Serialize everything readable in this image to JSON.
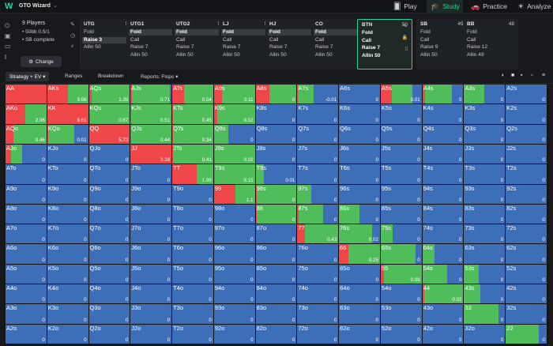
{
  "app": {
    "name": "GTO Wizard"
  },
  "nav": {
    "play": "Play",
    "study": "Study",
    "practice": "Practice",
    "analyze": "Analyze"
  },
  "left": {
    "players": "9 Players",
    "blinds": "• 50bb 0.5/1",
    "sb": "• SB complete",
    "change": "Change"
  },
  "seats": [
    {
      "name": "UTG",
      "stack": "50",
      "actions": [
        {
          "t": "Fold"
        },
        {
          "t": "Raise 3",
          "sel": true
        },
        {
          "t": "Allin 50"
        }
      ]
    },
    {
      "name": "UTG1",
      "stack": "50",
      "actions": [
        {
          "t": "Fold",
          "sel": true
        },
        {
          "t": "Call"
        },
        {
          "t": "Raise 7"
        },
        {
          "t": "Allin 50"
        }
      ]
    },
    {
      "name": "UTG2",
      "stack": "50",
      "actions": [
        {
          "t": "Fold",
          "sel": true
        },
        {
          "t": "Call"
        },
        {
          "t": "Raise 7"
        },
        {
          "t": "Allin 50"
        }
      ]
    },
    {
      "name": "LJ",
      "stack": "50",
      "actions": [
        {
          "t": "Fold",
          "sel": true
        },
        {
          "t": "Call"
        },
        {
          "t": "Raise 7"
        },
        {
          "t": "Allin 50"
        }
      ]
    },
    {
      "name": "HJ",
      "stack": "50",
      "actions": [
        {
          "t": "Fold",
          "sel": true
        },
        {
          "t": "Call"
        },
        {
          "t": "Raise 7"
        },
        {
          "t": "Allin 50"
        }
      ]
    },
    {
      "name": "CO",
      "stack": "50",
      "actions": [
        {
          "t": "Fold",
          "sel": true
        },
        {
          "t": "Call"
        },
        {
          "t": "Raise 7"
        },
        {
          "t": "Allin 50"
        }
      ]
    },
    {
      "name": "BTN",
      "stack": "50",
      "active": true,
      "actions": [
        {
          "t": "Fold"
        },
        {
          "t": "Call"
        },
        {
          "t": "Raise 7"
        },
        {
          "t": "Allin 50"
        }
      ]
    },
    {
      "name": "SB",
      "stack": "49.5",
      "actions": [
        {
          "t": "Fold"
        },
        {
          "t": "Call"
        },
        {
          "t": "Raise 9"
        },
        {
          "t": "Allin 50"
        }
      ]
    },
    {
      "name": "BB",
      "stack": "48",
      "actions": [
        {
          "t": "Fold"
        },
        {
          "t": "Call"
        },
        {
          "t": "Raise 12"
        },
        {
          "t": "Allin 49"
        }
      ]
    }
  ],
  "subbar": {
    "strategy": "Strategy + EV",
    "ranges": "Ranges",
    "breakdown": "Breakdown",
    "reports": "Reports: Flops"
  },
  "colors": {
    "allin": "#e0363b",
    "raise": "#ef4649",
    "call": "#4fbe5a",
    "fold": "#3d6fb9"
  },
  "grid": [
    [
      {
        "h": "AA",
        "r": 1,
        "c": 0,
        "e": ""
      },
      {
        "h": "AKs",
        "r": 0.5,
        "c": 0.5,
        "e": "3.06"
      },
      {
        "h": "AQs",
        "r": 0.06,
        "c": 0.94,
        "e": "1.35"
      },
      {
        "h": "AJs",
        "r": 0.03,
        "c": 0.93,
        "e": "0.71"
      },
      {
        "h": "ATs",
        "r": 0.28,
        "c": 0.72,
        "e": "0.54"
      },
      {
        "h": "A9s",
        "r": 0.2,
        "c": 0.8,
        "e": "0.11"
      },
      {
        "h": "A8s",
        "r": 0.33,
        "c": 0.67,
        "e": "0"
      },
      {
        "h": "A7s",
        "r": 0.02,
        "c": 0.37,
        "e": "-0.01"
      },
      {
        "h": "A6s",
        "r": 0,
        "c": 0,
        "e": "0"
      },
      {
        "h": "A5s",
        "r": 0.27,
        "c": 0.5,
        "e": "0.01"
      },
      {
        "h": "A4s",
        "r": 0.06,
        "c": 0.66,
        "e": "0"
      },
      {
        "h": "A3s",
        "r": 0,
        "c": 0.5,
        "e": "0"
      },
      {
        "h": "A2s",
        "r": 0,
        "c": 0,
        "e": "0"
      }
    ],
    [
      {
        "h": "AKo",
        "r": 0.48,
        "c": 0.52,
        "e": "2.06"
      },
      {
        "h": "KK",
        "r": 1,
        "c": 0,
        "e": "9.61"
      },
      {
        "h": "KQs",
        "r": 0.02,
        "c": 0.98,
        "e": "0.67"
      },
      {
        "h": "KJs",
        "r": 0.02,
        "c": 0.98,
        "e": "0.51"
      },
      {
        "h": "KTs",
        "r": 0.02,
        "c": 0.98,
        "e": "0.45"
      },
      {
        "h": "K9s",
        "r": 0.08,
        "c": 0.92,
        "e": "0.02"
      },
      {
        "h": "K8s",
        "r": 0,
        "c": 0,
        "e": "0"
      },
      {
        "h": "K7s",
        "r": 0,
        "c": 0,
        "e": "0"
      },
      {
        "h": "K6s",
        "r": 0,
        "c": 0,
        "e": "0"
      },
      {
        "h": "K5s",
        "r": 0,
        "c": 0,
        "e": "0"
      },
      {
        "h": "K4s",
        "r": 0,
        "c": 0,
        "e": "0"
      },
      {
        "h": "K3s",
        "r": 0,
        "c": 0,
        "e": "0"
      },
      {
        "h": "K2s",
        "r": 0,
        "c": 0,
        "e": "0"
      }
    ],
    [
      {
        "h": "AQo",
        "r": 0.2,
        "c": 0.8,
        "e": "0.46"
      },
      {
        "h": "KQo",
        "r": 0.02,
        "c": 0.64,
        "e": "0.01"
      },
      {
        "h": "QQ",
        "r": 1,
        "c": 0,
        "e": "5.72"
      },
      {
        "h": "QJs",
        "r": 0.02,
        "c": 0.98,
        "e": "0.44"
      },
      {
        "h": "QTs",
        "r": 0.02,
        "c": 0.98,
        "e": "0.34"
      },
      {
        "h": "Q9s",
        "r": 0,
        "c": 0.35,
        "e": "0"
      },
      {
        "h": "Q8s",
        "r": 0,
        "c": 0,
        "e": "0"
      },
      {
        "h": "Q7s",
        "r": 0,
        "c": 0,
        "e": "0"
      },
      {
        "h": "Q6s",
        "r": 0,
        "c": 0,
        "e": "0"
      },
      {
        "h": "Q5s",
        "r": 0,
        "c": 0,
        "e": "0"
      },
      {
        "h": "Q4s",
        "r": 0,
        "c": 0,
        "e": "0"
      },
      {
        "h": "Q3s",
        "r": 0,
        "c": 0,
        "e": "0"
      },
      {
        "h": "Q2s",
        "r": 0,
        "c": 0,
        "e": "0"
      }
    ],
    [
      {
        "h": "AJo",
        "r": 0.13,
        "c": 0.27,
        "e": "0"
      },
      {
        "h": "KJo",
        "r": 0,
        "c": 0,
        "e": "0"
      },
      {
        "h": "QJo",
        "r": 0,
        "c": 0,
        "e": "0"
      },
      {
        "h": "JJ",
        "r": 1,
        "c": 0,
        "e": "3.28"
      },
      {
        "h": "JTs",
        "r": 0.02,
        "c": 0.98,
        "e": "0.41"
      },
      {
        "h": "J9s",
        "r": 0.02,
        "c": 0.98,
        "e": "0.02"
      },
      {
        "h": "J8s",
        "r": 0,
        "c": 0,
        "e": "0"
      },
      {
        "h": "J7s",
        "r": 0,
        "c": 0,
        "e": "0"
      },
      {
        "h": "J6s",
        "r": 0,
        "c": 0,
        "e": "0"
      },
      {
        "h": "J5s",
        "r": 0,
        "c": 0,
        "e": "0"
      },
      {
        "h": "J4s",
        "r": 0,
        "c": 0,
        "e": "0"
      },
      {
        "h": "J3s",
        "r": 0,
        "c": 0,
        "e": "0"
      },
      {
        "h": "J2s",
        "r": 0,
        "c": 0,
        "e": "0"
      }
    ],
    [
      {
        "h": "ATo",
        "r": 0,
        "c": 0,
        "e": "0"
      },
      {
        "h": "KTo",
        "r": 0,
        "c": 0,
        "e": "0"
      },
      {
        "h": "QTo",
        "r": 0,
        "c": 0,
        "e": "0"
      },
      {
        "h": "JTo",
        "r": 0,
        "c": 0,
        "e": "0"
      },
      {
        "h": "TT",
        "r": 0.6,
        "c": 0.4,
        "e": "1.99"
      },
      {
        "h": "T9s",
        "r": 0.03,
        "c": 0.97,
        "e": "0.15"
      },
      {
        "h": "T8s",
        "r": 0,
        "c": 0.2,
        "e": "0.01"
      },
      {
        "h": "T7s",
        "r": 0,
        "c": 0,
        "e": "0"
      },
      {
        "h": "T6s",
        "r": 0,
        "c": 0,
        "e": "0"
      },
      {
        "h": "T5s",
        "r": 0,
        "c": 0,
        "e": "0"
      },
      {
        "h": "T4s",
        "r": 0,
        "c": 0,
        "e": "0"
      },
      {
        "h": "T3s",
        "r": 0,
        "c": 0,
        "e": "0"
      },
      {
        "h": "T2s",
        "r": 0,
        "c": 0,
        "e": "0"
      }
    ],
    [
      {
        "h": "A9o",
        "r": 0,
        "c": 0,
        "e": "0"
      },
      {
        "h": "K9o",
        "r": 0,
        "c": 0,
        "e": "0"
      },
      {
        "h": "Q9o",
        "r": 0,
        "c": 0,
        "e": "0"
      },
      {
        "h": "J9o",
        "r": 0,
        "c": 0,
        "e": "0"
      },
      {
        "h": "T9o",
        "r": 0,
        "c": 0,
        "e": "0"
      },
      {
        "h": "99",
        "r": 0.52,
        "c": 0.48,
        "e": "1.1"
      },
      {
        "h": "98s",
        "r": 0.03,
        "c": 0.97,
        "e": "0"
      },
      {
        "h": "97s",
        "r": 0,
        "c": 0.35,
        "e": "0"
      },
      {
        "h": "96s",
        "r": 0,
        "c": 0,
        "e": "0"
      },
      {
        "h": "95s",
        "r": 0,
        "c": 0,
        "e": "0"
      },
      {
        "h": "94s",
        "r": 0,
        "c": 0,
        "e": "0"
      },
      {
        "h": "93s",
        "r": 0,
        "c": 0,
        "e": "0"
      },
      {
        "h": "92s",
        "r": 0,
        "c": 0,
        "e": "0"
      }
    ],
    [
      {
        "h": "A8o",
        "r": 0,
        "c": 0,
        "e": "0"
      },
      {
        "h": "K8o",
        "r": 0,
        "c": 0,
        "e": "0"
      },
      {
        "h": "Q8o",
        "r": 0,
        "c": 0,
        "e": "0"
      },
      {
        "h": "J8o",
        "r": 0,
        "c": 0,
        "e": "0"
      },
      {
        "h": "T8o",
        "r": 0,
        "c": 0,
        "e": "0"
      },
      {
        "h": "98o",
        "r": 0,
        "c": 0,
        "e": "0"
      },
      {
        "h": "88",
        "r": 0.02,
        "c": 0.98,
        "e": "0"
      },
      {
        "h": "87s",
        "r": 0.04,
        "c": 0.6,
        "e": "0"
      },
      {
        "h": "86s",
        "r": 0,
        "c": 0.5,
        "e": "0"
      },
      {
        "h": "85s",
        "r": 0,
        "c": 0,
        "e": "0"
      },
      {
        "h": "84s",
        "r": 0,
        "c": 0,
        "e": "0"
      },
      {
        "h": "83s",
        "r": 0,
        "c": 0,
        "e": "0"
      },
      {
        "h": "82s",
        "r": 0,
        "c": 0,
        "e": "0"
      }
    ],
    [
      {
        "h": "A7o",
        "r": 0,
        "c": 0,
        "e": "0"
      },
      {
        "h": "K7o",
        "r": 0,
        "c": 0,
        "e": "0"
      },
      {
        "h": "Q7o",
        "r": 0,
        "c": 0,
        "e": "0"
      },
      {
        "h": "J7o",
        "r": 0,
        "c": 0,
        "e": "0"
      },
      {
        "h": "T7o",
        "r": 0,
        "c": 0,
        "e": "0"
      },
      {
        "h": "97o",
        "r": 0,
        "c": 0,
        "e": "0"
      },
      {
        "h": "87o",
        "r": 0,
        "c": 0,
        "e": "0"
      },
      {
        "h": "77",
        "r": 0.18,
        "c": 0.82,
        "e": "0.43"
      },
      {
        "h": "76s",
        "r": 0,
        "c": 0.8,
        "e": "0.02"
      },
      {
        "h": "75s",
        "r": 0,
        "c": 0.3,
        "e": "0"
      },
      {
        "h": "74s",
        "r": 0,
        "c": 0,
        "e": "0"
      },
      {
        "h": "73s",
        "r": 0,
        "c": 0,
        "e": "0"
      },
      {
        "h": "72s",
        "r": 0,
        "c": 0,
        "e": "0"
      }
    ],
    [
      {
        "h": "A6o",
        "r": 0,
        "c": 0,
        "e": "0"
      },
      {
        "h": "K6o",
        "r": 0,
        "c": 0,
        "e": "0"
      },
      {
        "h": "Q6o",
        "r": 0,
        "c": 0,
        "e": "0"
      },
      {
        "h": "J6o",
        "r": 0,
        "c": 0,
        "e": "0"
      },
      {
        "h": "T6o",
        "r": 0,
        "c": 0,
        "e": "0"
      },
      {
        "h": "96o",
        "r": 0,
        "c": 0,
        "e": "0"
      },
      {
        "h": "86o",
        "r": 0,
        "c": 0,
        "e": "0"
      },
      {
        "h": "76o",
        "r": 0,
        "c": 0,
        "e": "0"
      },
      {
        "h": "66",
        "r": 0.22,
        "c": 0.78,
        "e": "0.25"
      },
      {
        "h": "65s",
        "r": 0,
        "c": 0.85,
        "e": "0"
      },
      {
        "h": "64s",
        "r": 0,
        "c": 0.3,
        "e": "0"
      },
      {
        "h": "63s",
        "r": 0,
        "c": 0,
        "e": "0"
      },
      {
        "h": "62s",
        "r": 0,
        "c": 0,
        "e": "0"
      }
    ],
    [
      {
        "h": "A5o",
        "r": 0,
        "c": 0,
        "e": "0"
      },
      {
        "h": "K5o",
        "r": 0,
        "c": 0,
        "e": "0"
      },
      {
        "h": "Q5o",
        "r": 0,
        "c": 0,
        "e": "0"
      },
      {
        "h": "J5o",
        "r": 0,
        "c": 0,
        "e": "0"
      },
      {
        "h": "T5o",
        "r": 0,
        "c": 0,
        "e": "0"
      },
      {
        "h": "95o",
        "r": 0,
        "c": 0,
        "e": "0"
      },
      {
        "h": "85o",
        "r": 0,
        "c": 0,
        "e": "0"
      },
      {
        "h": "75o",
        "r": 0,
        "c": 0,
        "e": "0"
      },
      {
        "h": "65o",
        "r": 0,
        "c": 0,
        "e": "0"
      },
      {
        "h": "55",
        "r": 0.08,
        "c": 0.92,
        "e": "0.08"
      },
      {
        "h": "54s",
        "r": 0,
        "c": 0.6,
        "e": "0"
      },
      {
        "h": "53s",
        "r": 0,
        "c": 0.35,
        "e": "0"
      },
      {
        "h": "52s",
        "r": 0,
        "c": 0,
        "e": "0"
      }
    ],
    [
      {
        "h": "A4o",
        "r": 0,
        "c": 0,
        "e": "0"
      },
      {
        "h": "K4o",
        "r": 0,
        "c": 0,
        "e": "0"
      },
      {
        "h": "Q4o",
        "r": 0,
        "c": 0,
        "e": "0"
      },
      {
        "h": "J4o",
        "r": 0,
        "c": 0,
        "e": "0"
      },
      {
        "h": "T4o",
        "r": 0,
        "c": 0,
        "e": "0"
      },
      {
        "h": "94o",
        "r": 0,
        "c": 0,
        "e": "0"
      },
      {
        "h": "84o",
        "r": 0,
        "c": 0,
        "e": "0"
      },
      {
        "h": "74o",
        "r": 0,
        "c": 0,
        "e": "0"
      },
      {
        "h": "64o",
        "r": 0,
        "c": 0,
        "e": "0"
      },
      {
        "h": "54o",
        "r": 0,
        "c": 0,
        "e": "0"
      },
      {
        "h": "44",
        "r": 0.04,
        "c": 0.96,
        "e": "0.02"
      },
      {
        "h": "43s",
        "r": 0,
        "c": 0.4,
        "e": "0"
      },
      {
        "h": "42s",
        "r": 0,
        "c": 0,
        "e": "0"
      }
    ],
    [
      {
        "h": "A3o",
        "r": 0,
        "c": 0,
        "e": "0"
      },
      {
        "h": "K3o",
        "r": 0,
        "c": 0,
        "e": "0"
      },
      {
        "h": "Q3o",
        "r": 0,
        "c": 0,
        "e": "0"
      },
      {
        "h": "J3o",
        "r": 0,
        "c": 0,
        "e": "0"
      },
      {
        "h": "T3o",
        "r": 0,
        "c": 0,
        "e": "0"
      },
      {
        "h": "93o",
        "r": 0,
        "c": 0,
        "e": "0"
      },
      {
        "h": "83o",
        "r": 0,
        "c": 0,
        "e": "0"
      },
      {
        "h": "73o",
        "r": 0,
        "c": 0,
        "e": "0"
      },
      {
        "h": "63o",
        "r": 0,
        "c": 0,
        "e": "0"
      },
      {
        "h": "53o",
        "r": 0,
        "c": 0,
        "e": "0"
      },
      {
        "h": "43o",
        "r": 0,
        "c": 0,
        "e": "0"
      },
      {
        "h": "33",
        "r": 0,
        "c": 0.84,
        "e": "0"
      },
      {
        "h": "32s",
        "r": 0,
        "c": 0,
        "e": "0"
      }
    ],
    [
      {
        "h": "A2o",
        "r": 0,
        "c": 0,
        "e": "0"
      },
      {
        "h": "K2o",
        "r": 0,
        "c": 0,
        "e": "0"
      },
      {
        "h": "Q2o",
        "r": 0,
        "c": 0,
        "e": "0"
      },
      {
        "h": "J2o",
        "r": 0,
        "c": 0,
        "e": "0"
      },
      {
        "h": "T2o",
        "r": 0,
        "c": 0,
        "e": "0"
      },
      {
        "h": "92o",
        "r": 0,
        "c": 0,
        "e": "0"
      },
      {
        "h": "82o",
        "r": 0,
        "c": 0,
        "e": "0"
      },
      {
        "h": "72o",
        "r": 0,
        "c": 0,
        "e": "0"
      },
      {
        "h": "62o",
        "r": 0,
        "c": 0,
        "e": "0"
      },
      {
        "h": "52o",
        "r": 0,
        "c": 0,
        "e": "0"
      },
      {
        "h": "42o",
        "r": 0,
        "c": 0,
        "e": "0"
      },
      {
        "h": "32o",
        "r": 0,
        "c": 0,
        "e": "0"
      },
      {
        "h": "22",
        "r": 0,
        "c": 0.8,
        "e": "0"
      }
    ]
  ]
}
